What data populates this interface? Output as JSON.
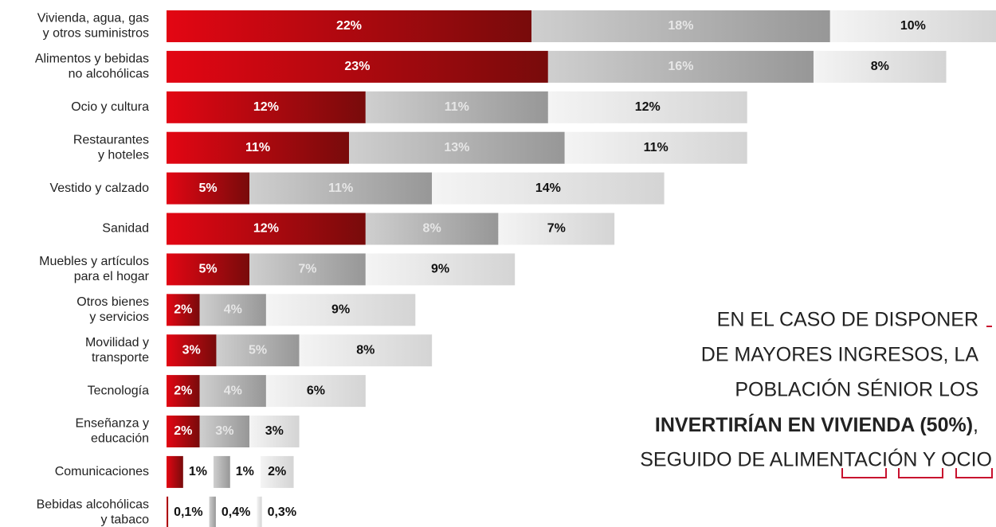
{
  "chart_data": {
    "type": "stacked-hbar",
    "categories": [
      [
        "Vivienda, agua, gas",
        "y otros suministros"
      ],
      [
        "Alimentos y bebidas",
        "no alcohólicas"
      ],
      [
        "Ocio y cultura"
      ],
      [
        "Restaurantes",
        "y hoteles"
      ],
      [
        "Vestido y calzado"
      ],
      [
        "Sanidad"
      ],
      [
        "Muebles y artículos",
        "para el hogar"
      ],
      [
        "Otros bienes",
        "y servicios"
      ],
      [
        "Movilidad y",
        "transporte"
      ],
      [
        "Tecnología"
      ],
      [
        "Enseñanza y",
        "educación"
      ],
      [
        "Comunicaciones"
      ],
      [
        "Bebidas alcohólicas",
        "y tabaco"
      ]
    ],
    "series": [
      {
        "color": [
          "#e30613",
          "#780b0b"
        ],
        "label_color": "#ffffff",
        "values": [
          22,
          23,
          12,
          11,
          5,
          12,
          5,
          2,
          3,
          2,
          2,
          1,
          0.1
        ],
        "value_labels": [
          "22%",
          "23%",
          "12%",
          "11%",
          "5%",
          "12%",
          "5%",
          "2%",
          "3%",
          "2%",
          "2%",
          "1%",
          "0,1%"
        ]
      },
      {
        "color": [
          "#cfcfcf",
          "#979797"
        ],
        "label_color": "#e6e6e6",
        "values": [
          18,
          16,
          11,
          13,
          11,
          8,
          7,
          4,
          5,
          4,
          3,
          1,
          0.4
        ],
        "value_labels": [
          "18%",
          "16%",
          "11%",
          "13%",
          "11%",
          "8%",
          "7%",
          "4%",
          "5%",
          "4%",
          "3%",
          "1%",
          "0,4%"
        ]
      },
      {
        "color": [
          "#f4f4f4",
          "#d4d4d4"
        ],
        "label_color": "#111111",
        "values": [
          10,
          8,
          12,
          11,
          14,
          7,
          9,
          9,
          8,
          6,
          3,
          2,
          0.3
        ],
        "value_labels": [
          "10%",
          "8%",
          "12%",
          "11%",
          "14%",
          "7%",
          "9%",
          "9%",
          "8%",
          "6%",
          "3%",
          "2%",
          "0,3%"
        ]
      }
    ],
    "xlim": [
      0,
      50
    ],
    "annotation": {
      "lines": [
        "EN EL CASO DE DISPONER",
        "DE MAYORES INGRESOS, LA",
        "POBLACIÓN SÉNIOR LOS"
      ],
      "bold": "INVERTIRÍAN EN VIVIENDA (50%)",
      "bold_tail": ",",
      "last": "SEGUIDO DE ALIMENTACIÓN Y OCIO"
    }
  }
}
